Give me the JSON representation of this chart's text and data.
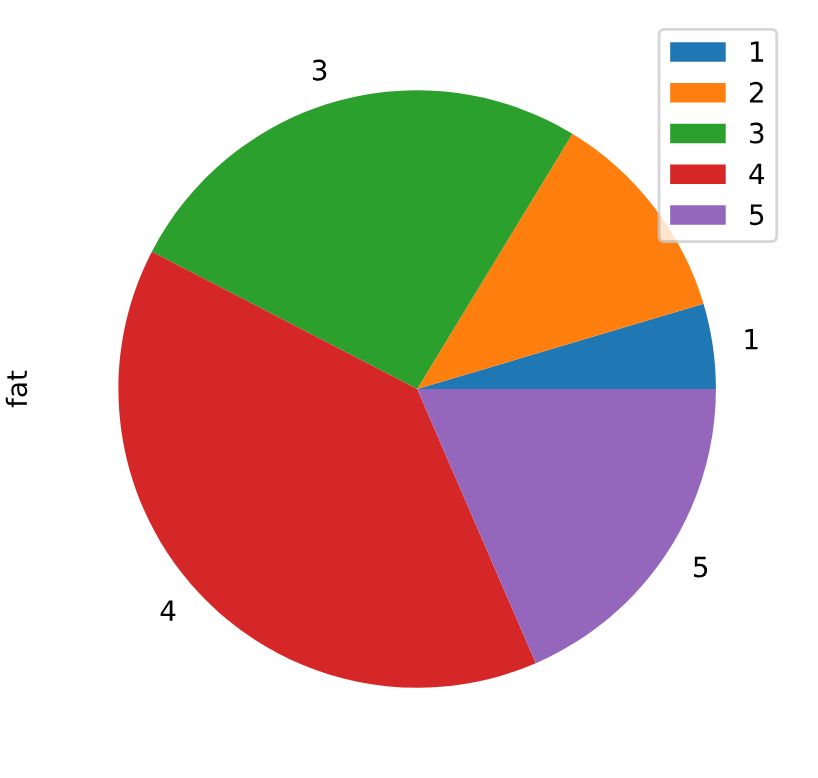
{
  "chart_data": {
    "type": "pie",
    "ylabel": "fat",
    "categories": [
      "1",
      "2",
      "3",
      "4",
      "5"
    ],
    "values": [
      4.6,
      11.7,
      26.1,
      39.1,
      18.5
    ],
    "colors": [
      "#1f77b4",
      "#ff7f0e",
      "#2ca02c",
      "#d62728",
      "#9467bd"
    ],
    "legend": "top right"
  }
}
